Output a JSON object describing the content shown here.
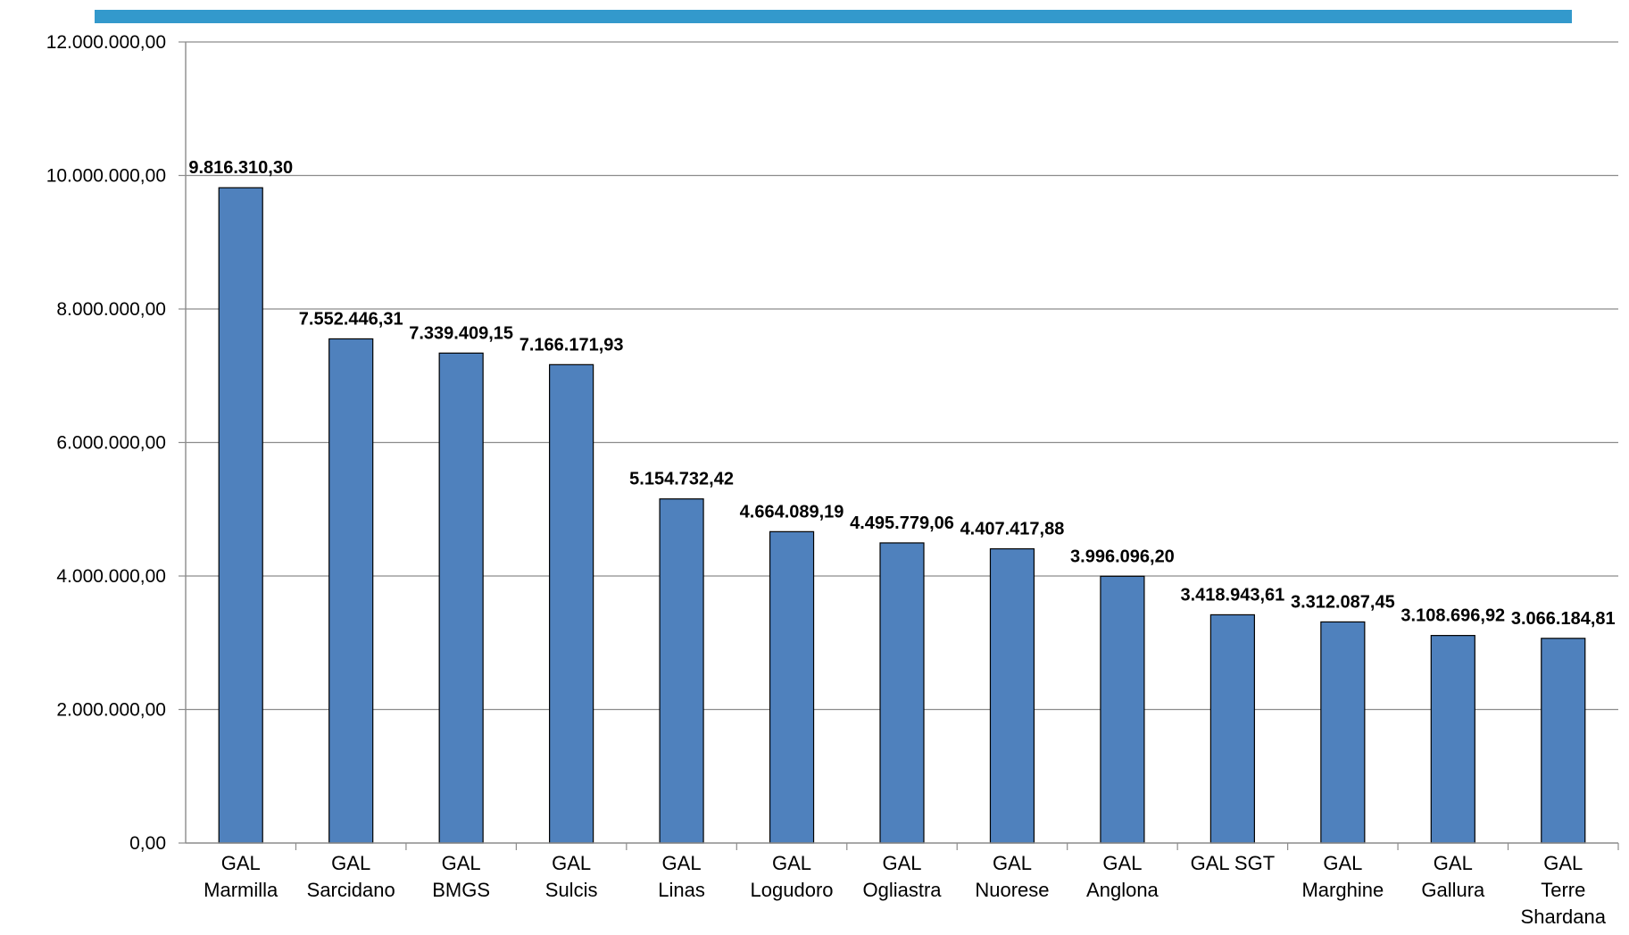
{
  "colors": {
    "top_bar": "#3399cc",
    "bar_fill": "#4f81bd",
    "bar_stroke": "#000000",
    "grid": "#8c8c8c",
    "axis": "#8c8c8c"
  },
  "chart_data": {
    "type": "bar",
    "title": "",
    "xlabel": "",
    "ylabel": "",
    "ylim": [
      0,
      12000000
    ],
    "y_ticks": [
      0,
      2000000,
      4000000,
      6000000,
      8000000,
      10000000,
      12000000
    ],
    "y_tick_labels": [
      "0,00",
      "2.000.000,00",
      "4.000.000,00",
      "6.000.000,00",
      "8.000.000,00",
      "10.000.000,00",
      "12.000.000,00"
    ],
    "grid": true,
    "legend": "none",
    "categories": [
      [
        "GAL",
        "Marmilla"
      ],
      [
        "GAL",
        "Sarcidano"
      ],
      [
        "GAL",
        "BMGS"
      ],
      [
        "GAL",
        "Sulcis"
      ],
      [
        "GAL",
        "Linas"
      ],
      [
        "GAL",
        "Logudoro"
      ],
      [
        "GAL",
        "Ogliastra"
      ],
      [
        "GAL",
        "Nuorese"
      ],
      [
        "GAL",
        "Anglona"
      ],
      [
        "GAL SGT"
      ],
      [
        "GAL",
        "Marghine"
      ],
      [
        "GAL",
        "Gallura"
      ],
      [
        "GAL",
        "Terre",
        "Shardana"
      ]
    ],
    "values": [
      9816310.3,
      7552446.31,
      7339409.15,
      7166171.93,
      5154732.42,
      4664089.19,
      4495779.06,
      4407417.88,
      3996096.2,
      3418943.61,
      3312087.45,
      3108696.92,
      3066184.81
    ],
    "data_labels": [
      "9.816.310,30",
      "7.552.446,31",
      "7.339.409,15",
      "7.166.171,93",
      "5.154.732,42",
      "4.664.089,19",
      "4.495.779,06",
      "4.407.417,88",
      "3.996.096,20",
      "3.418.943,61",
      "3.312.087,45",
      "3.108.696,92",
      "3.066.184,81"
    ]
  }
}
